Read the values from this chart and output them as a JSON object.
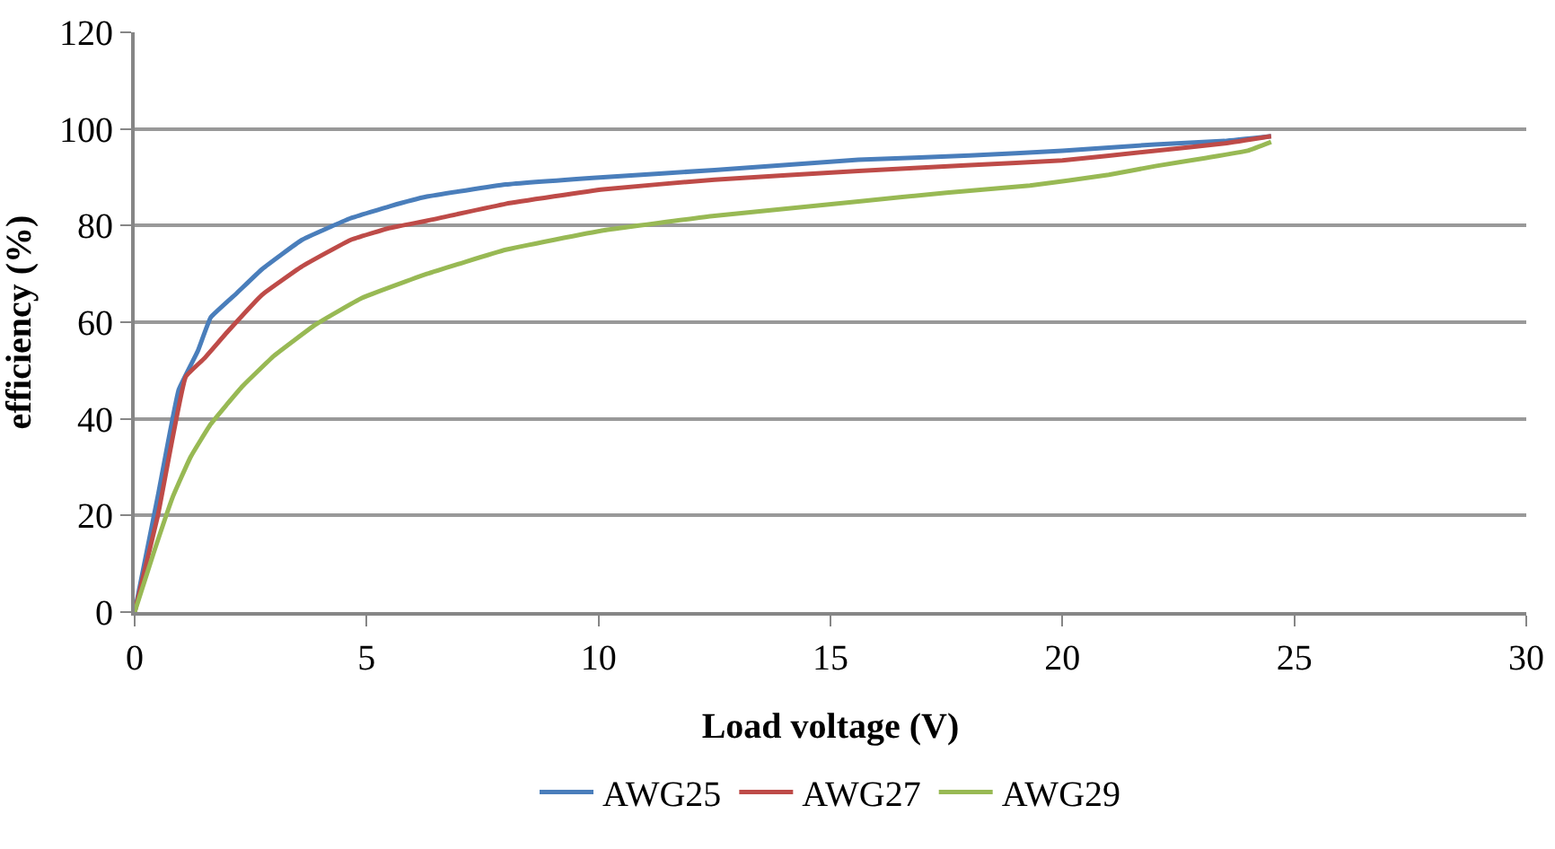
{
  "chart_data": {
    "type": "line",
    "xlabel": "Load voltage (V)",
    "ylabel": "efficiency (%)",
    "xlim": [
      0,
      30
    ],
    "xticks": [
      0,
      5,
      10,
      15,
      20,
      25,
      30
    ],
    "ylim": [
      0,
      120
    ],
    "yticks": [
      0,
      20,
      40,
      60,
      80,
      100,
      120
    ],
    "grid": "y",
    "legend": "bottom",
    "marker": "none",
    "line_style": "solid",
    "series": [
      {
        "name": "AWG25",
        "color": "#4a7ebb",
        "x": [
          0,
          0.5,
          0.95,
          1.36,
          1.64,
          2.2,
          2.75,
          3.6,
          4.65,
          5.5,
          6.3,
          8,
          10.1,
          12.5,
          15.6,
          18,
          20,
          22,
          23.5,
          24.5
        ],
        "values": [
          0,
          24,
          46,
          54,
          61,
          66,
          71,
          77,
          81.5,
          84,
          86,
          88.5,
          90,
          91.5,
          93.6,
          94.5,
          95.5,
          96.8,
          97.5,
          98.5
        ]
      },
      {
        "name": "AWG27",
        "color": "#be4b48",
        "x": [
          0,
          0.5,
          1.1,
          1.5,
          2.0,
          2.75,
          3.6,
          4.65,
          5.5,
          6.3,
          8,
          10.1,
          12.5,
          15.6,
          18,
          20,
          22,
          23.5,
          24.5
        ],
        "values": [
          0,
          20,
          48.7,
          52.5,
          58,
          65.7,
          71.5,
          77,
          79.5,
          81,
          84.5,
          87.5,
          89.5,
          91.3,
          92.5,
          93.5,
          95.5,
          97,
          98.5
        ]
      },
      {
        "name": "AWG29",
        "color": "#98b954",
        "x": [
          0,
          0.4,
          0.82,
          1.2,
          1.64,
          2.3,
          3.0,
          3.9,
          4.9,
          6.3,
          8,
          10.1,
          12.5,
          15.6,
          17.5,
          19.3,
          21,
          22,
          23.1,
          24,
          24.5
        ],
        "values": [
          0,
          12,
          23.8,
          32,
          38.9,
          46.5,
          53,
          59.5,
          65,
          70,
          75,
          79,
          82,
          85,
          86.8,
          88.3,
          90.5,
          92.3,
          94,
          95.5,
          97.3
        ]
      }
    ]
  }
}
